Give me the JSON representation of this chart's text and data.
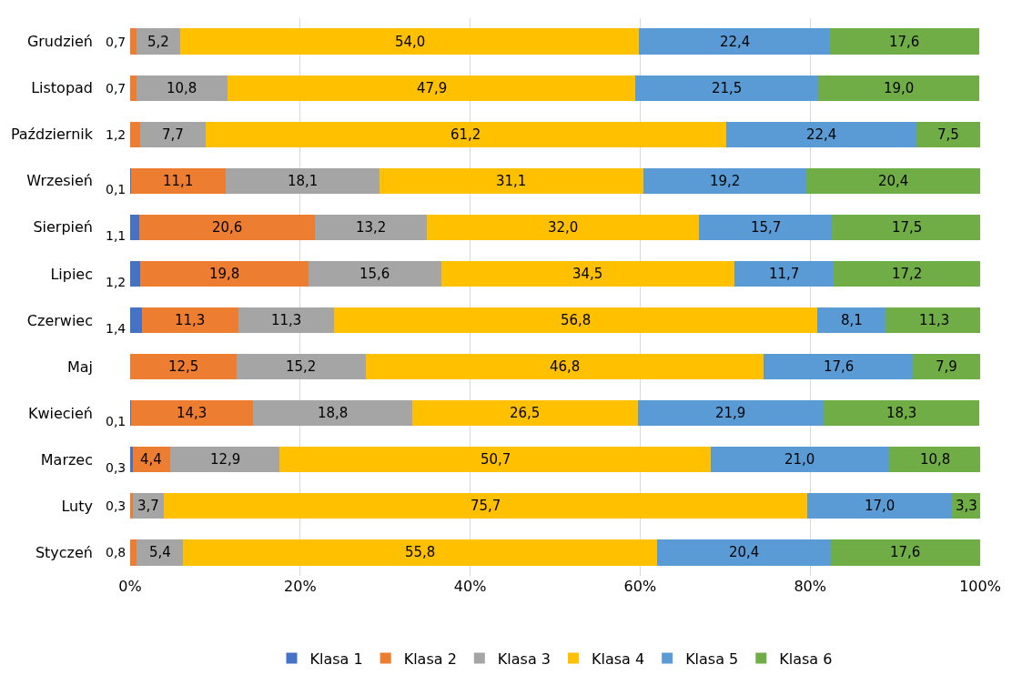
{
  "chart_data": {
    "type": "bar",
    "orientation": "horizontal",
    "stacked": true,
    "grid": "x",
    "legend": "bottom",
    "categories": [
      "Grudzień",
      "Listopad",
      "Październik",
      "Wrzesień",
      "Sierpień",
      "Lipiec",
      "Czerwiec",
      "Maj",
      "Kwiecień",
      "Marzec",
      "Luty",
      "Styczeń"
    ],
    "xlim": [
      0,
      100
    ],
    "xticks": [
      {
        "value": 0,
        "label": "0%"
      },
      {
        "value": 20,
        "label": "20%"
      },
      {
        "value": 40,
        "label": "40%"
      },
      {
        "value": 60,
        "label": "60%"
      },
      {
        "value": 80,
        "label": "80%"
      },
      {
        "value": 100,
        "label": "100%"
      }
    ],
    "series": [
      {
        "name": "Klasa 1",
        "color": "#4472c4",
        "values": [
          null,
          null,
          null,
          0.1,
          1.1,
          1.2,
          1.4,
          null,
          0.1,
          0.3,
          null,
          null
        ],
        "value_labels": [
          null,
          null,
          null,
          "0,1",
          "1,1",
          "1,2",
          "1,4",
          null,
          "0,1",
          "0,3",
          null,
          null
        ]
      },
      {
        "name": "Klasa 2",
        "color": "#ed7d31",
        "values": [
          0.7,
          0.7,
          1.2,
          11.1,
          20.6,
          19.8,
          11.3,
          12.5,
          14.3,
          4.4,
          0.3,
          0.8
        ],
        "value_labels": [
          "0,7",
          "0,7",
          "1,2",
          "11,1",
          "20,6",
          "19,8",
          "11,3",
          "12,5",
          "14,3",
          "4,4",
          "0,3",
          "0,8"
        ]
      },
      {
        "name": "Klasa 3",
        "color": "#a5a5a5",
        "values": [
          5.2,
          10.8,
          7.7,
          18.1,
          13.2,
          15.6,
          11.3,
          15.2,
          18.8,
          12.9,
          3.7,
          5.4
        ],
        "value_labels": [
          "5,2",
          "10,8",
          "7,7",
          "18,1",
          "13,2",
          "15,6",
          "11,3",
          "15,2",
          "18,8",
          "12,9",
          "3,7",
          "5,4"
        ]
      },
      {
        "name": "Klasa 4",
        "color": "#ffc000",
        "values": [
          54.0,
          47.9,
          61.2,
          31.1,
          32.0,
          34.5,
          56.8,
          46.8,
          26.5,
          50.7,
          75.7,
          55.8
        ],
        "value_labels": [
          "54,0",
          "47,9",
          "61,2",
          "31,1",
          "32,0",
          "34,5",
          "56,8",
          "46,8",
          "26,5",
          "50,7",
          "75,7",
          "55,8"
        ]
      },
      {
        "name": "Klasa 5",
        "color": "#5b9bd5",
        "values": [
          22.4,
          21.5,
          22.4,
          19.2,
          15.7,
          11.7,
          8.1,
          17.6,
          21.9,
          21.0,
          17.0,
          20.4
        ],
        "value_labels": [
          "22,4",
          "21,5",
          "22,4",
          "19,2",
          "15,7",
          "11,7",
          "8,1",
          "17,6",
          "21,9",
          "21,0",
          "17,0",
          "20,4"
        ]
      },
      {
        "name": "Klasa 6",
        "color": "#70ad47",
        "values": [
          17.6,
          19.0,
          7.5,
          20.4,
          17.5,
          17.2,
          11.3,
          7.9,
          18.3,
          10.8,
          3.3,
          17.6
        ],
        "value_labels": [
          "17,6",
          "19,0",
          "7,5",
          "20,4",
          "17,5",
          "17,2",
          "11,3",
          "7,9",
          "18,3",
          "10,8",
          "3,3",
          "17,6"
        ]
      }
    ]
  }
}
